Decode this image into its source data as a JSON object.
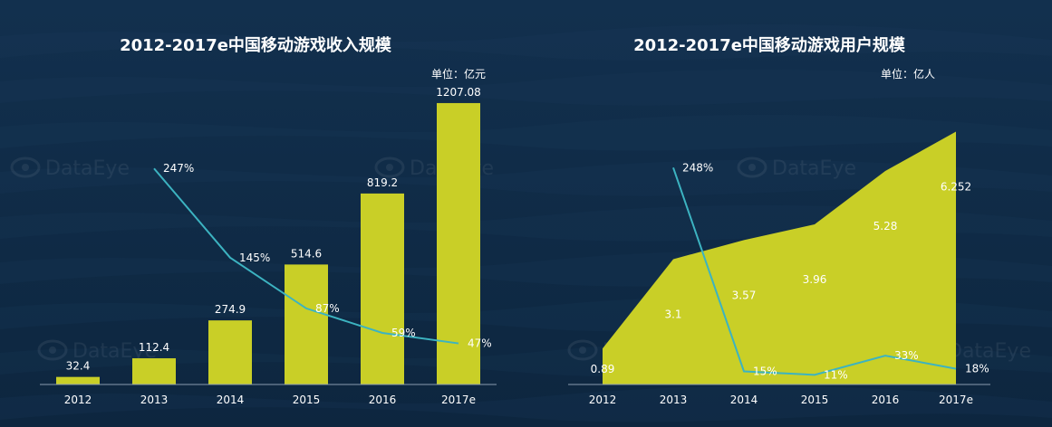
{
  "watermark": "DataEye",
  "colors": {
    "background": "#0f2a45",
    "bar": "#c9cf27",
    "line": "#3cb3c1",
    "axis": "#8a9bb0",
    "text": "#ffffff"
  },
  "chart_data": [
    {
      "type": "bar",
      "title": "2012-2017e中国移动游戏收入规模",
      "unit_label": "单位：亿元",
      "categories": [
        "2012",
        "2013",
        "2014",
        "2015",
        "2016",
        "2017e"
      ],
      "value_labels": [
        "32.4",
        "112.4",
        "274.9",
        "514.6",
        "819.2",
        "1207.08"
      ],
      "values": [
        32.4,
        112.4,
        274.9,
        514.6,
        819.2,
        1207.08
      ],
      "ylim": [
        0,
        1300
      ],
      "growth_labels": [
        "247%",
        "145%",
        "87%",
        "59%",
        "47%"
      ],
      "growth": [
        247,
        145,
        87,
        59,
        47
      ],
      "growth_categories": [
        "2013",
        "2014",
        "2015",
        "2016",
        "2017e"
      ],
      "growth_ylim": [
        0,
        300
      ]
    },
    {
      "type": "area",
      "title": "2012-2017e中国移动游戏用户规模",
      "unit_label": "单位：亿人",
      "categories": [
        "2012",
        "2013",
        "2014",
        "2015",
        "2016",
        "2017e"
      ],
      "value_labels": [
        "0.89",
        "3.1",
        "3.57",
        "3.96",
        "5.28",
        "6.252"
      ],
      "values": [
        0.89,
        3.1,
        3.57,
        3.96,
        5.28,
        6.252
      ],
      "ylim": [
        0,
        6.6
      ],
      "growth_labels": [
        "248%",
        "15%",
        "11%",
        "33%",
        "18%"
      ],
      "growth": [
        248,
        15,
        11,
        33,
        18
      ],
      "growth_categories": [
        "2013",
        "2014",
        "2015",
        "2016",
        "2017e"
      ],
      "growth_ylim": [
        0,
        300
      ]
    }
  ]
}
